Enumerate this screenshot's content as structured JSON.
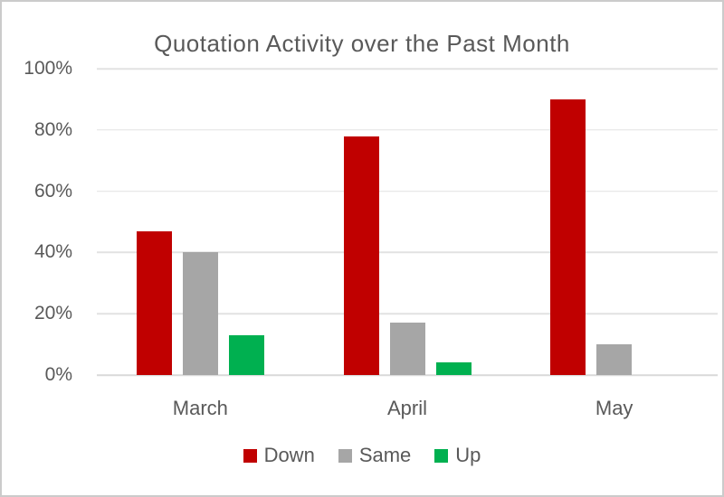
{
  "window": {
    "background": "#FFFFFF",
    "border_color": "#CBCBCB"
  },
  "chart_data": {
    "type": "bar",
    "title": "Quotation Activity over the Past Month",
    "categories": [
      "March",
      "April",
      "May"
    ],
    "series": [
      {
        "name": "Down",
        "color": "#C00000",
        "values": [
          47,
          78,
          90
        ]
      },
      {
        "name": "Same",
        "color": "#A6A6A6",
        "values": [
          40,
          17,
          10
        ]
      },
      {
        "name": "Up",
        "color": "#00B050",
        "values": [
          13,
          4,
          0
        ]
      }
    ],
    "y_axis": {
      "ticks_top_to_bottom": [
        "100%",
        "80%",
        "60%",
        "40%",
        "20%",
        "0%"
      ],
      "min": 0,
      "max": 100,
      "unit": "%"
    },
    "x_axis_labels": [
      "March",
      "April",
      "May"
    ],
    "grid": true,
    "legend": {
      "position": "bottom",
      "entries": [
        "Down",
        "Same",
        "Up"
      ]
    },
    "colors": {
      "text": "#595959",
      "gridline": "#E2E2E2",
      "axis_line": "#D9D9D9",
      "border": "#CBCBCB",
      "background": "#FFFFFF"
    }
  }
}
